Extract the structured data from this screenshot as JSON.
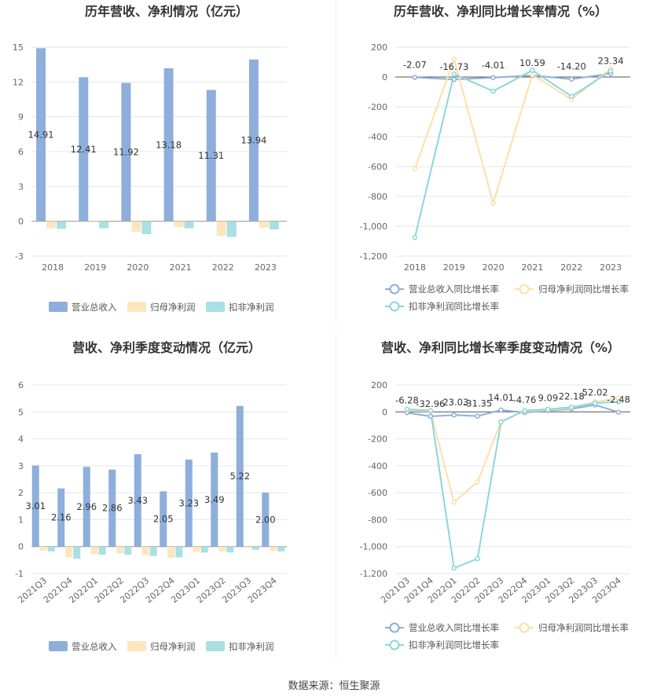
{
  "colors": {
    "revenue": "#8eaedb",
    "parent_profit": "#fde6bd",
    "deducted_profit": "#a9e0e3",
    "revenue_line": "#8eaedb",
    "parent_line": "#fde0a8",
    "deducted_line": "#8ad7db"
  },
  "source": "数据来源：恒生聚源",
  "chart_data": [
    {
      "id": "annual-values",
      "type": "bar",
      "title": "历年营收、净利情况（亿元）",
      "categories": [
        "2018",
        "2019",
        "2020",
        "2021",
        "2022",
        "2023"
      ],
      "ylim": [
        -3,
        15
      ],
      "yticks": [
        15,
        12,
        9,
        6,
        3,
        0,
        -3
      ],
      "grid": true,
      "legend": "bottom",
      "series": [
        {
          "name": "营业总收入",
          "values": [
            14.91,
            12.41,
            11.92,
            13.18,
            11.31,
            13.94
          ],
          "labels": [
            "14.91",
            "12.41",
            "11.92",
            "13.18",
            "11.31",
            "13.94"
          ]
        },
        {
          "name": "归母净利润",
          "values": [
            -0.6,
            -0.05,
            -0.9,
            -0.5,
            -1.25,
            -0.55
          ]
        },
        {
          "name": "扣非净利润",
          "values": [
            -0.65,
            -0.6,
            -1.1,
            -0.6,
            -1.35,
            -0.7
          ]
        }
      ]
    },
    {
      "id": "annual-growth",
      "type": "line",
      "title": "历年营收、净利同比增长率情况（%）",
      "categories": [
        "2018",
        "2019",
        "2020",
        "2021",
        "2022",
        "2023"
      ],
      "ylim": [
        -1200,
        200
      ],
      "yticks": [
        200,
        0,
        -200,
        -400,
        -600,
        -800,
        -1000,
        -1200
      ],
      "ytick_labels": [
        "200",
        "0",
        "-200",
        "-400",
        "-600",
        "-800",
        "-1,000",
        "-1,200"
      ],
      "grid": true,
      "legend": "bottom",
      "series": [
        {
          "name": "营业总收入同比增长率",
          "values": [
            -2.07,
            -16.73,
            -4.01,
            10.59,
            -14.2,
            23.34
          ],
          "labels": [
            "-2.07",
            "-16.73",
            "-4.01",
            "10.59",
            "-14.20",
            "23.34"
          ]
        },
        {
          "name": "归母净利润同比增长率",
          "values": [
            -615,
            120,
            -845,
            15,
            -150,
            55
          ]
        },
        {
          "name": "扣非净利润同比增长率",
          "values": [
            -1075,
            20,
            -95,
            45,
            -130,
            40
          ]
        }
      ]
    },
    {
      "id": "quarterly-values",
      "type": "bar",
      "title": "营收、净利季度变动情况（亿元）",
      "categories": [
        "2021Q3",
        "2021Q4",
        "2022Q1",
        "2022Q2",
        "2022Q3",
        "2022Q4",
        "2023Q1",
        "2023Q2",
        "2023Q3",
        "2023Q4"
      ],
      "ylim": [
        -1,
        6
      ],
      "yticks": [
        6,
        5,
        4,
        3,
        2,
        1,
        0,
        -1
      ],
      "grid": true,
      "legend": "bottom",
      "series": [
        {
          "name": "营业总收入",
          "values": [
            3.01,
            2.16,
            2.96,
            2.86,
            3.43,
            2.05,
            3.23,
            3.49,
            5.22,
            2.0
          ],
          "labels": [
            "3.01",
            "2.16",
            "2.96",
            "2.86",
            "3.43",
            "2.05",
            "3.23",
            "3.49",
            "5.22",
            "2.00"
          ]
        },
        {
          "name": "归母净利润",
          "values": [
            -0.15,
            -0.4,
            -0.28,
            -0.25,
            -0.32,
            -0.42,
            -0.2,
            -0.18,
            -0.05,
            -0.15
          ]
        },
        {
          "name": "扣非净利润",
          "values": [
            -0.18,
            -0.45,
            -0.3,
            -0.3,
            -0.35,
            -0.4,
            -0.22,
            -0.22,
            -0.12,
            -0.18
          ]
        }
      ]
    },
    {
      "id": "quarterly-growth",
      "type": "line",
      "title": "营收、净利同比增长率季度变动情况（%）",
      "categories": [
        "2021Q3",
        "2021Q4",
        "2022Q1",
        "2022Q2",
        "2022Q3",
        "2022Q4",
        "2023Q1",
        "2023Q2",
        "2023Q3",
        "2023Q4"
      ],
      "ylim": [
        -1200,
        200
      ],
      "yticks": [
        200,
        0,
        -200,
        -400,
        -600,
        -800,
        -1000,
        -1200
      ],
      "ytick_labels": [
        "200",
        "0",
        "-200",
        "-400",
        "-600",
        "-800",
        "-1,000",
        "-1,200"
      ],
      "grid": true,
      "legend": "bottom",
      "series": [
        {
          "name": "营业总收入同比增长率",
          "values": [
            -6.28,
            -32.96,
            -23.03,
            -31.35,
            14.01,
            -4.76,
            9.09,
            22.18,
            52.02,
            -2.48
          ],
          "labels": [
            "-6.28",
            "-32.96",
            "-23.03",
            "-31.35",
            "14.01",
            "-4.76",
            "9.09",
            "22.18",
            "52.02",
            "-2.48"
          ]
        },
        {
          "name": "归母净利润同比增长率",
          "values": [
            10,
            5,
            -670,
            -520,
            -70,
            5,
            15,
            30,
            75,
            100
          ]
        },
        {
          "name": "扣非净利润同比增长率",
          "values": [
            20,
            10,
            -1160,
            -1090,
            -75,
            10,
            20,
            35,
            65,
            75
          ]
        }
      ]
    }
  ]
}
